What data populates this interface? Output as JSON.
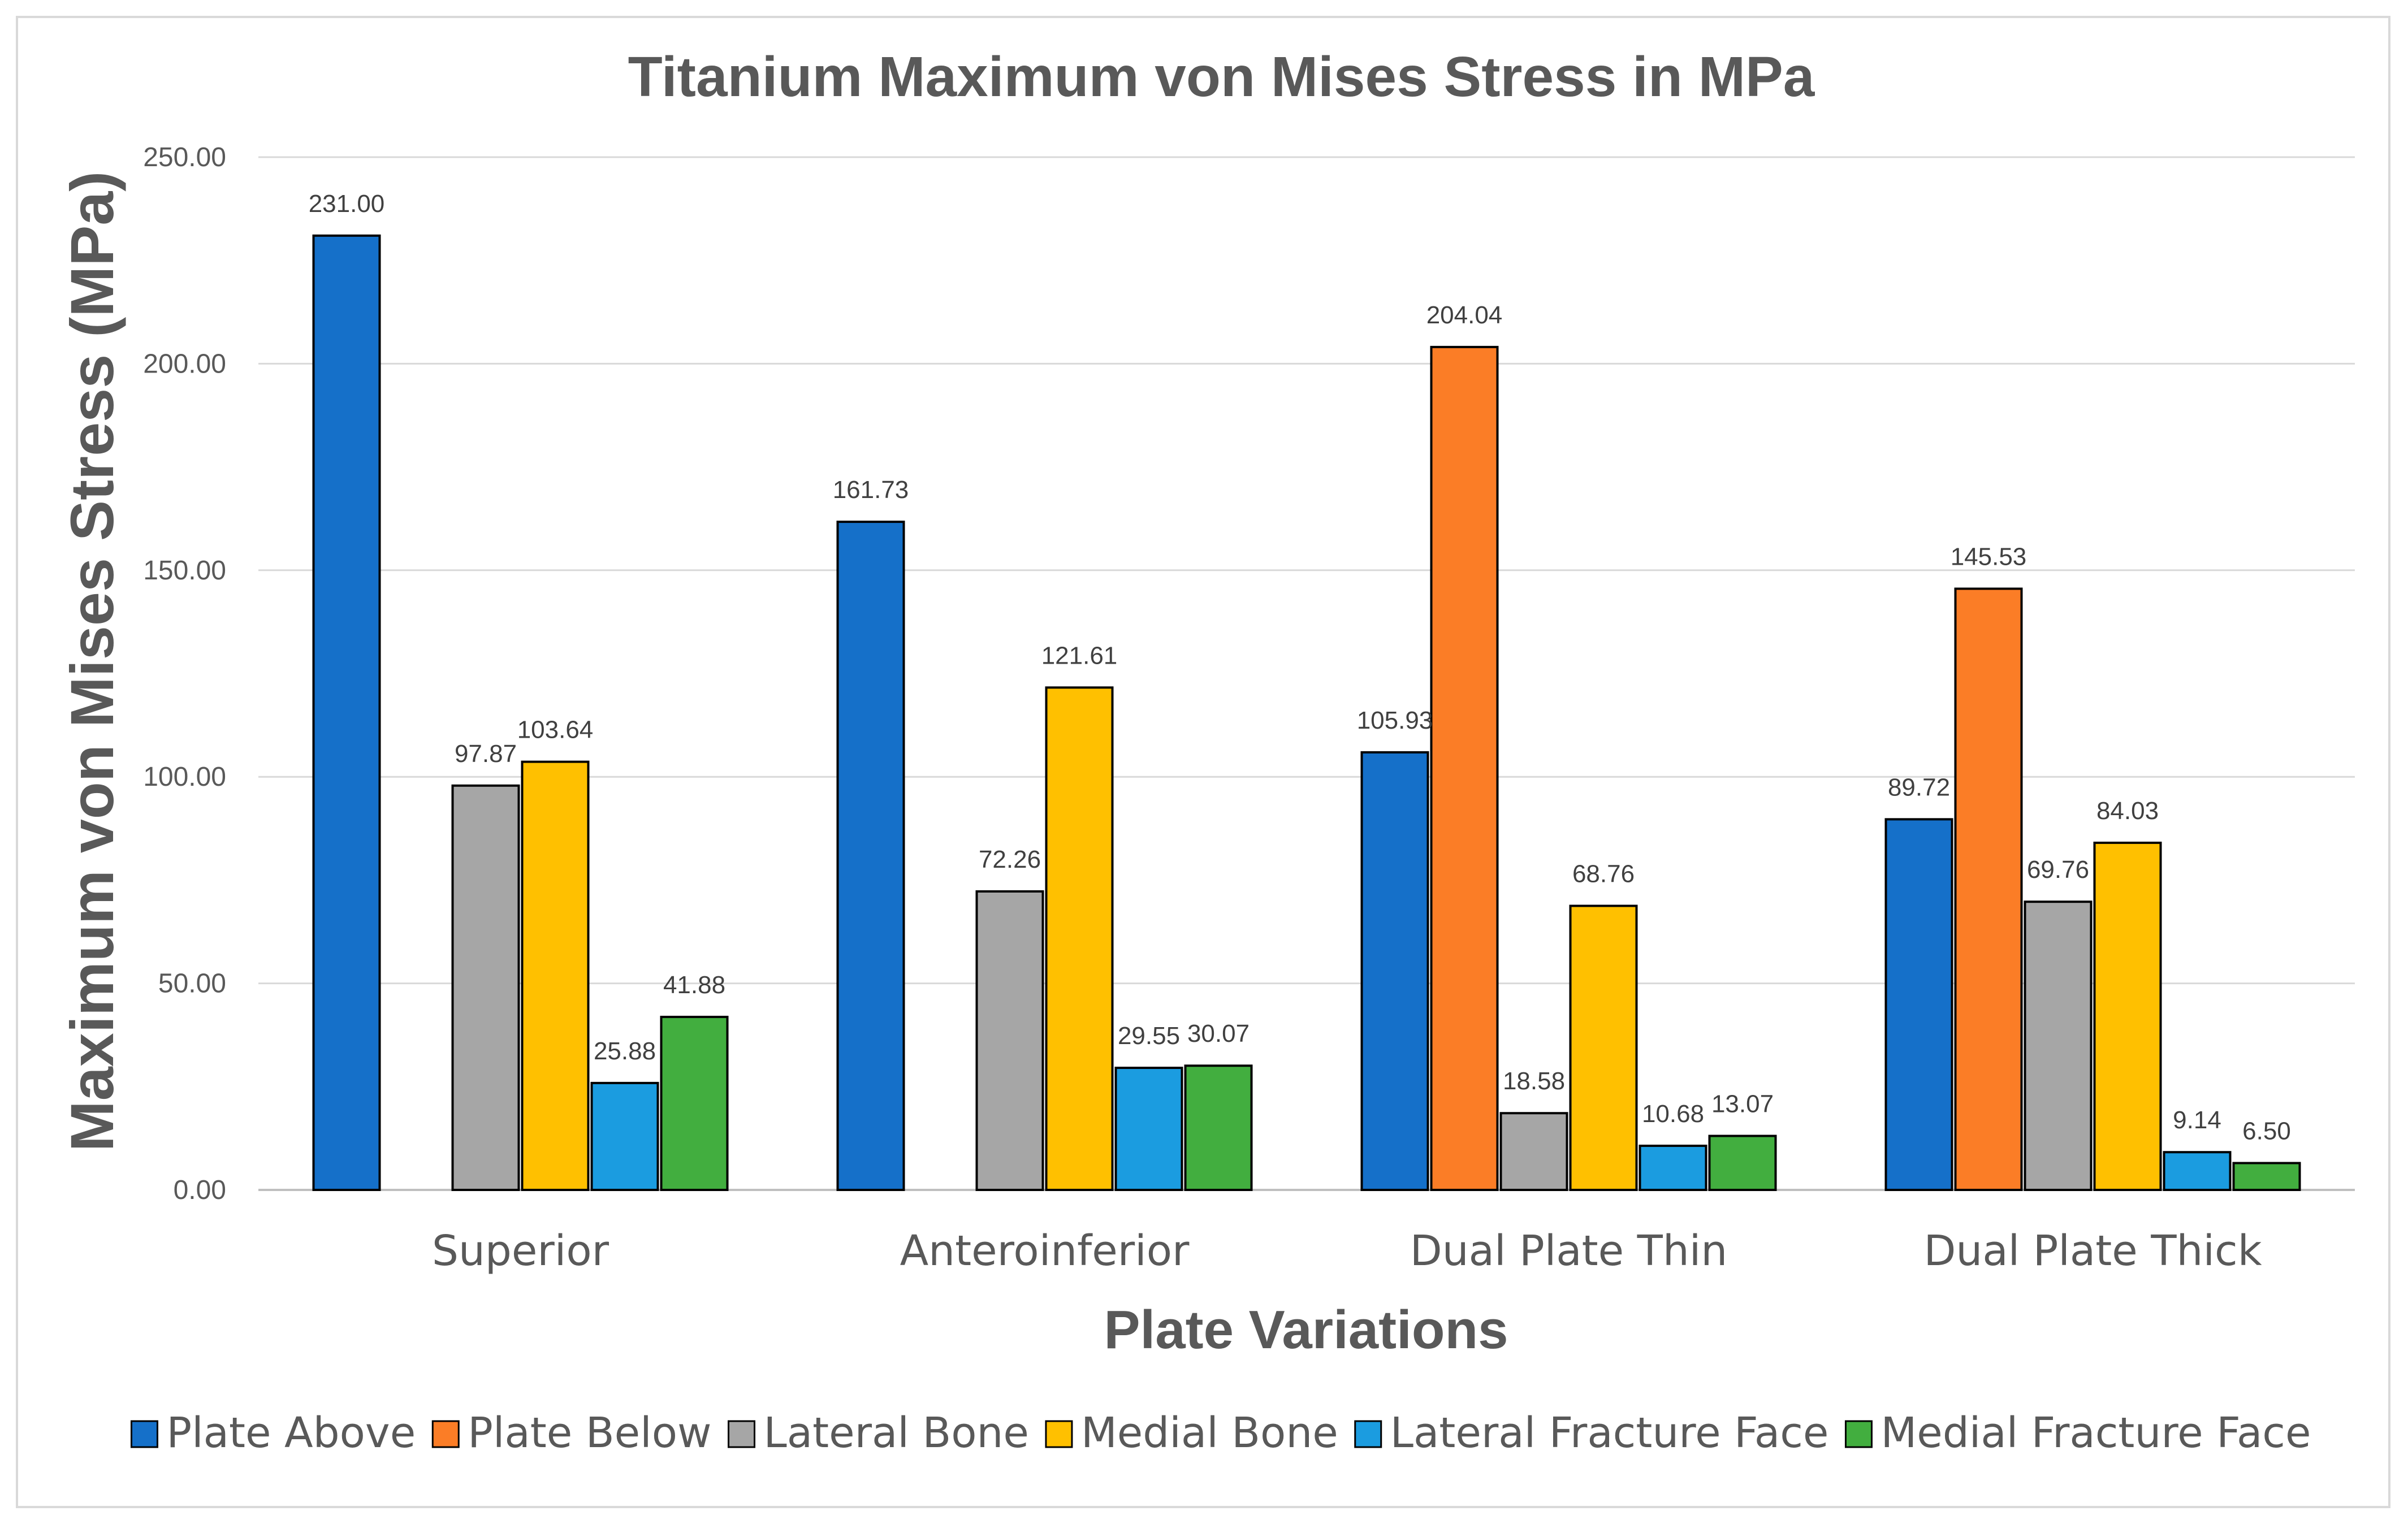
{
  "chart_data": {
    "type": "bar",
    "title": "Titanium Maximum von Mises Stress in MPa",
    "xlabel": "Plate Variations",
    "ylabel": "Maximum von Mises Stress (MPa)",
    "ylim": [
      0,
      250
    ],
    "yticks": [
      "0.00",
      "50.00",
      "100.00",
      "150.00",
      "200.00",
      "250.00"
    ],
    "grid": true,
    "legend_position": "bottom",
    "categories": [
      "Superior",
      "Anteroinferior",
      "Dual Plate Thin",
      "Dual Plate Thick"
    ],
    "series": [
      {
        "name": "Plate Above",
        "color": "#1570c9",
        "values": [
          231.0,
          161.73,
          105.93,
          89.72
        ],
        "labels": [
          "231.00",
          "161.73",
          "105.93",
          "89.72"
        ]
      },
      {
        "name": "Plate Below",
        "color": "#fb7d26",
        "values": [
          null,
          null,
          204.04,
          145.53
        ],
        "labels": [
          "",
          "",
          "204.04",
          "145.53"
        ]
      },
      {
        "name": "Lateral Bone",
        "color": "#a6a6a6",
        "values": [
          97.87,
          72.26,
          18.58,
          69.76
        ],
        "labels": [
          "97.87",
          "72.26",
          "18.58",
          "69.76"
        ]
      },
      {
        "name": "Medial Bone",
        "color": "#ffc000",
        "values": [
          103.64,
          121.61,
          68.76,
          84.03
        ],
        "labels": [
          "103.64",
          "121.61",
          "68.76",
          "84.03"
        ]
      },
      {
        "name": "Lateral Fracture Face",
        "color": "#1b9ce0",
        "values": [
          25.88,
          29.55,
          10.68,
          9.14
        ],
        "labels": [
          "25.88",
          "29.55",
          "10.68",
          "9.14"
        ]
      },
      {
        "name": "Medial Fracture Face",
        "color": "#42ae3f",
        "values": [
          41.88,
          30.07,
          13.07,
          6.5
        ],
        "labels": [
          "41.88",
          "30.07",
          "13.07",
          "6.50"
        ]
      }
    ]
  }
}
